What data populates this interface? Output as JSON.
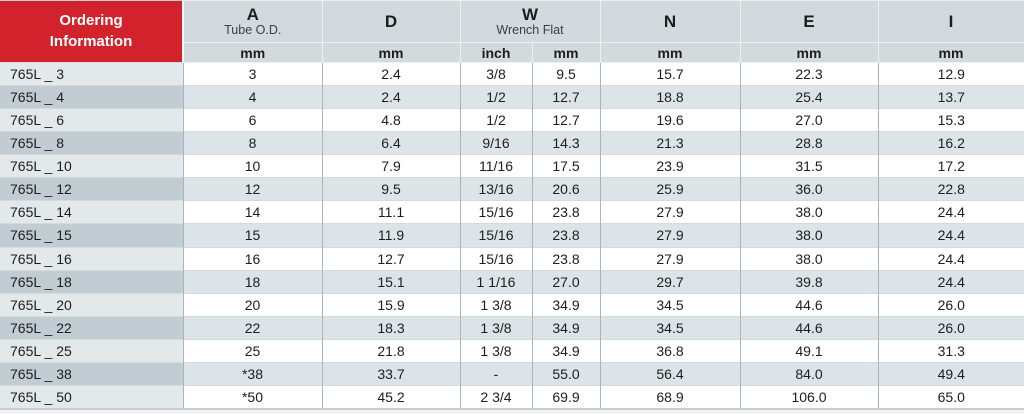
{
  "colors": {
    "header_red": "#d2232c",
    "header_gray": "#d2dade",
    "row_alt_gray": "#dde4e8",
    "part_col_light": "#e3e8eb",
    "part_col_dark": "#c2ccd3"
  },
  "table": {
    "ordering_header": {
      "line1": "Ordering",
      "line2": "Information"
    },
    "columns": [
      {
        "label": "A",
        "sub": "Tube O.D.",
        "units": [
          "mm"
        ]
      },
      {
        "label": "D",
        "sub": "",
        "units": [
          "mm"
        ]
      },
      {
        "label": "W",
        "sub": "Wrench Flat",
        "units": [
          "inch",
          "mm"
        ]
      },
      {
        "label": "N",
        "sub": "",
        "units": [
          "mm"
        ]
      },
      {
        "label": "E",
        "sub": "",
        "units": [
          "mm"
        ]
      },
      {
        "label": "I",
        "sub": "",
        "units": [
          "mm"
        ]
      }
    ],
    "rows": [
      {
        "part": "765L _ 3",
        "values": [
          "3",
          "2.4",
          "3/8",
          "9.5",
          "15.7",
          "22.3",
          "12.9"
        ]
      },
      {
        "part": "765L _ 4",
        "values": [
          "4",
          "2.4",
          "1/2",
          "12.7",
          "18.8",
          "25.4",
          "13.7"
        ]
      },
      {
        "part": "765L _ 6",
        "values": [
          "6",
          "4.8",
          "1/2",
          "12.7",
          "19.6",
          "27.0",
          "15.3"
        ]
      },
      {
        "part": "765L _ 8",
        "values": [
          "8",
          "6.4",
          "9/16",
          "14.3",
          "21.3",
          "28.8",
          "16.2"
        ]
      },
      {
        "part": "765L _ 10",
        "values": [
          "10",
          "7.9",
          "11/16",
          "17.5",
          "23.9",
          "31.5",
          "17.2"
        ]
      },
      {
        "part": "765L _ 12",
        "values": [
          "12",
          "9.5",
          "13/16",
          "20.6",
          "25.9",
          "36.0",
          "22.8"
        ]
      },
      {
        "part": "765L _ 14",
        "values": [
          "14",
          "11.1",
          "15/16",
          "23.8",
          "27.9",
          "38.0",
          "24.4"
        ]
      },
      {
        "part": "765L _ 15",
        "values": [
          "15",
          "11.9",
          "15/16",
          "23.8",
          "27.9",
          "38.0",
          "24.4"
        ]
      },
      {
        "part": "765L _ 16",
        "values": [
          "16",
          "12.7",
          "15/16",
          "23.8",
          "27.9",
          "38.0",
          "24.4"
        ]
      },
      {
        "part": "765L _ 18",
        "values": [
          "18",
          "15.1",
          "1 1/16",
          "27.0",
          "29.7",
          "39.8",
          "24.4"
        ]
      },
      {
        "part": "765L _ 20",
        "values": [
          "20",
          "15.9",
          "1 3/8",
          "34.9",
          "34.5",
          "44.6",
          "26.0"
        ]
      },
      {
        "part": "765L _ 22",
        "values": [
          "22",
          "18.3",
          "1 3/8",
          "34.9",
          "34.5",
          "44.6",
          "26.0"
        ]
      },
      {
        "part": "765L _ 25",
        "values": [
          "25",
          "21.8",
          "1 3/8",
          "34.9",
          "36.8",
          "49.1",
          "31.3"
        ]
      },
      {
        "part": "765L _ 38",
        "values": [
          "*38",
          "33.7",
          "-",
          "55.0",
          "56.4",
          "84.0",
          "49.4"
        ]
      },
      {
        "part": "765L _ 50",
        "values": [
          "*50",
          "45.2",
          "2 3/4",
          "69.9",
          "68.9",
          "106.0",
          "65.0"
        ]
      }
    ]
  }
}
